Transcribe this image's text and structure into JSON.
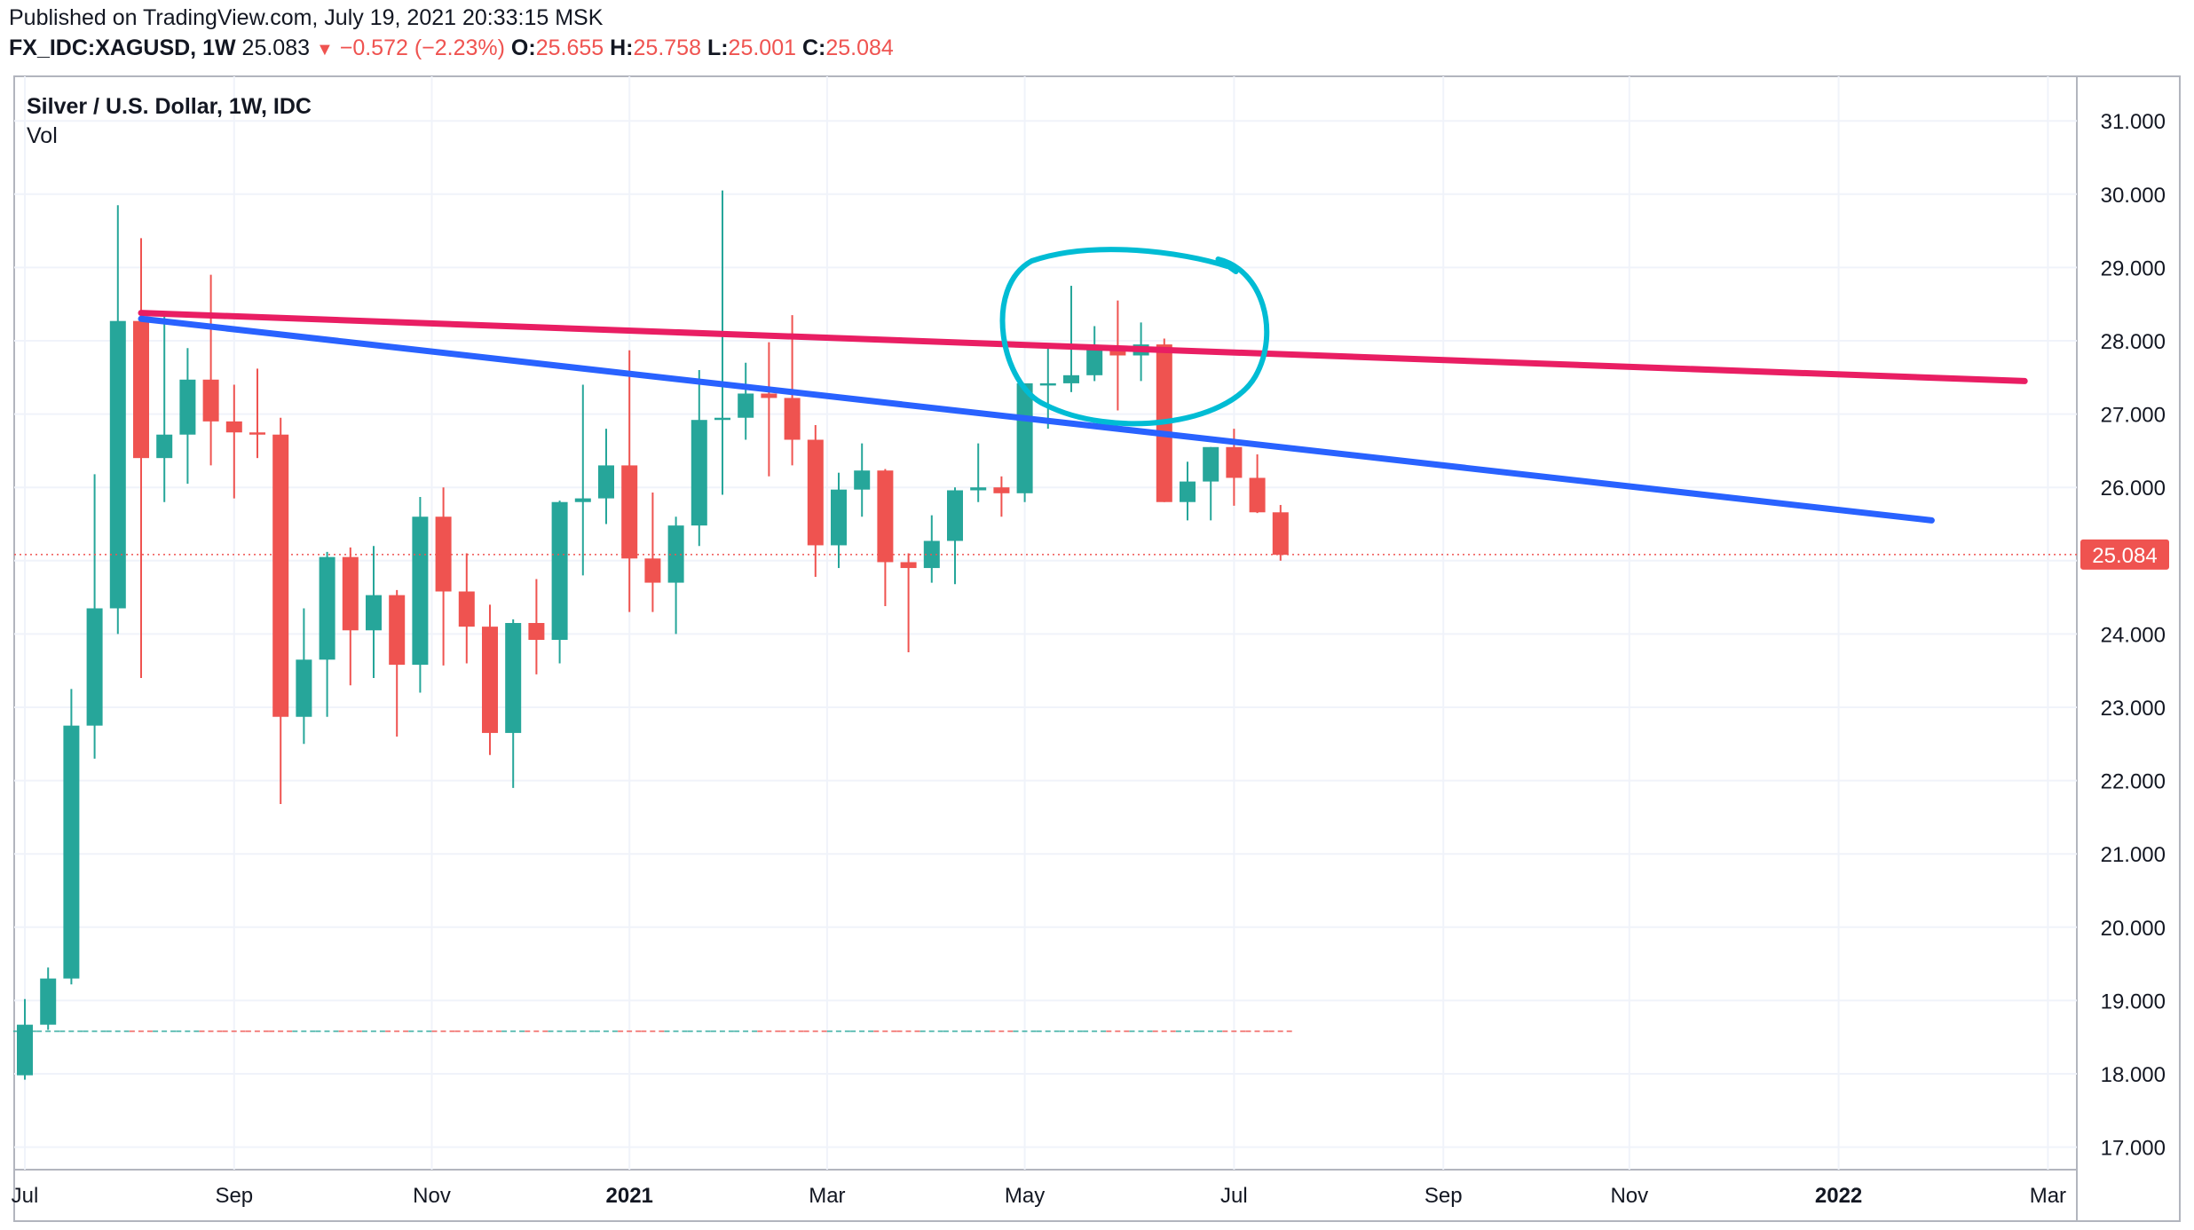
{
  "header": {
    "published": "Published on TradingView.com, July 19, 2021 20:33:15 MSK",
    "symbol": "FX_IDC:XAGUSD, 1W",
    "last": "25.083",
    "change": "−0.572 (−2.23%)",
    "o_label": "O:",
    "o_value": "25.655",
    "h_label": "H:",
    "h_value": "25.758",
    "l_label": "L:",
    "l_value": "25.001",
    "c_label": "C:",
    "c_value": "25.084"
  },
  "legend": {
    "title": "Silver / U.S. Dollar, 1W, IDC",
    "vol": "Vol"
  },
  "colors": {
    "up": "#26a69a",
    "down": "#ef5350",
    "resistance_line": "#e91e63",
    "trend_line": "#2962ff",
    "circle": "#00bcd4",
    "grid": "#f0f3fa",
    "axis_text": "#131722",
    "price_label_bg": "#ef5350"
  },
  "chart_data": {
    "type": "candlestick",
    "title": "Silver / U.S. Dollar, 1W, IDC",
    "ylim": [
      16.7,
      31.6
    ],
    "y_ticks": [
      "17.000",
      "18.000",
      "19.000",
      "20.000",
      "21.000",
      "22.000",
      "23.000",
      "24.000",
      "25.000",
      "26.000",
      "27.000",
      "28.000",
      "29.000",
      "30.000",
      "31.000"
    ],
    "x_ticks": [
      {
        "label": "Jul",
        "bold": false,
        "i": 0
      },
      {
        "label": "Sep",
        "bold": false,
        "i": 9
      },
      {
        "label": "Nov",
        "bold": false,
        "i": 17.5
      },
      {
        "label": "2021",
        "bold": true,
        "i": 26
      },
      {
        "label": "Mar",
        "bold": false,
        "i": 34.5
      },
      {
        "label": "May",
        "bold": false,
        "i": 43
      },
      {
        "label": "Jul",
        "bold": false,
        "i": 52
      },
      {
        "label": "Sep",
        "bold": false,
        "i": 61
      },
      {
        "label": "Nov",
        "bold": false,
        "i": 69
      },
      {
        "label": "2022",
        "bold": true,
        "i": 78
      },
      {
        "label": "Mar",
        "bold": false,
        "i": 87
      }
    ],
    "candles": [
      {
        "o": 17.98,
        "h": 19.02,
        "l": 17.92,
        "c": 18.67
      },
      {
        "o": 18.67,
        "h": 19.45,
        "l": 18.6,
        "c": 19.3
      },
      {
        "o": 19.3,
        "h": 23.25,
        "l": 19.22,
        "c": 22.75
      },
      {
        "o": 22.75,
        "h": 26.18,
        "l": 22.3,
        "c": 24.35
      },
      {
        "o": 24.35,
        "h": 29.85,
        "l": 24.0,
        "c": 28.27
      },
      {
        "o": 28.27,
        "h": 29.4,
        "l": 23.4,
        "c": 26.4
      },
      {
        "o": 26.4,
        "h": 28.4,
        "l": 25.8,
        "c": 26.72
      },
      {
        "o": 26.72,
        "h": 27.9,
        "l": 26.05,
        "c": 27.47
      },
      {
        "o": 27.47,
        "h": 28.9,
        "l": 26.3,
        "c": 26.9
      },
      {
        "o": 26.9,
        "h": 27.4,
        "l": 25.85,
        "c": 26.75
      },
      {
        "o": 26.75,
        "h": 27.62,
        "l": 26.4,
        "c": 26.72
      },
      {
        "o": 26.72,
        "h": 26.95,
        "l": 21.68,
        "c": 22.87
      },
      {
        "o": 22.87,
        "h": 24.35,
        "l": 22.5,
        "c": 23.65
      },
      {
        "o": 23.65,
        "h": 25.12,
        "l": 22.87,
        "c": 25.05
      },
      {
        "o": 25.05,
        "h": 25.18,
        "l": 23.3,
        "c": 24.05
      },
      {
        "o": 24.05,
        "h": 25.2,
        "l": 23.4,
        "c": 24.53
      },
      {
        "o": 24.53,
        "h": 24.6,
        "l": 22.6,
        "c": 23.58
      },
      {
        "o": 23.58,
        "h": 25.87,
        "l": 23.2,
        "c": 25.6
      },
      {
        "o": 25.6,
        "h": 26.0,
        "l": 23.57,
        "c": 24.58
      },
      {
        "o": 24.58,
        "h": 25.1,
        "l": 23.6,
        "c": 24.1
      },
      {
        "o": 24.1,
        "h": 24.4,
        "l": 22.35,
        "c": 22.65
      },
      {
        "o": 22.65,
        "h": 24.2,
        "l": 21.9,
        "c": 24.15
      },
      {
        "o": 24.15,
        "h": 24.75,
        "l": 23.45,
        "c": 23.92
      },
      {
        "o": 23.92,
        "h": 25.82,
        "l": 23.6,
        "c": 25.8
      },
      {
        "o": 25.8,
        "h": 27.4,
        "l": 24.8,
        "c": 25.85
      },
      {
        "o": 25.85,
        "h": 26.8,
        "l": 25.5,
        "c": 26.3
      },
      {
        "o": 26.3,
        "h": 27.87,
        "l": 24.3,
        "c": 25.03
      },
      {
        "o": 25.03,
        "h": 25.93,
        "l": 24.3,
        "c": 24.7
      },
      {
        "o": 24.7,
        "h": 25.6,
        "l": 24.0,
        "c": 25.48
      },
      {
        "o": 25.48,
        "h": 27.6,
        "l": 25.2,
        "c": 26.92
      },
      {
        "o": 26.92,
        "h": 30.05,
        "l": 25.9,
        "c": 26.95
      },
      {
        "o": 26.95,
        "h": 27.7,
        "l": 26.65,
        "c": 27.28
      },
      {
        "o": 27.28,
        "h": 27.98,
        "l": 26.15,
        "c": 27.22
      },
      {
        "o": 27.22,
        "h": 28.35,
        "l": 26.3,
        "c": 26.65
      },
      {
        "o": 26.65,
        "h": 26.85,
        "l": 24.78,
        "c": 25.21
      },
      {
        "o": 25.21,
        "h": 26.2,
        "l": 24.9,
        "c": 25.97
      },
      {
        "o": 25.97,
        "h": 26.6,
        "l": 25.6,
        "c": 26.23
      },
      {
        "o": 26.23,
        "h": 26.25,
        "l": 24.38,
        "c": 24.98
      },
      {
        "o": 24.98,
        "h": 25.1,
        "l": 23.75,
        "c": 24.9
      },
      {
        "o": 24.9,
        "h": 25.62,
        "l": 24.7,
        "c": 25.27
      },
      {
        "o": 25.27,
        "h": 26.0,
        "l": 24.68,
        "c": 25.96
      },
      {
        "o": 25.96,
        "h": 26.6,
        "l": 25.8,
        "c": 26.0
      },
      {
        "o": 26.0,
        "h": 26.15,
        "l": 25.6,
        "c": 25.92
      },
      {
        "o": 25.92,
        "h": 27.4,
        "l": 25.8,
        "c": 27.42
      },
      {
        "o": 27.42,
        "h": 27.9,
        "l": 26.8,
        "c": 27.42
      },
      {
        "o": 27.42,
        "h": 28.75,
        "l": 27.3,
        "c": 27.53
      },
      {
        "o": 27.53,
        "h": 28.2,
        "l": 27.45,
        "c": 27.92
      },
      {
        "o": 27.92,
        "h": 28.55,
        "l": 27.05,
        "c": 27.8
      },
      {
        "o": 27.8,
        "h": 28.25,
        "l": 27.45,
        "c": 27.95
      },
      {
        "o": 27.95,
        "h": 28.03,
        "l": 25.8,
        "c": 25.8
      },
      {
        "o": 25.8,
        "h": 26.35,
        "l": 25.55,
        "c": 26.08
      },
      {
        "o": 26.08,
        "h": 26.55,
        "l": 25.55,
        "c": 26.55
      },
      {
        "o": 26.55,
        "h": 26.8,
        "l": 25.75,
        "c": 26.13
      },
      {
        "o": 26.13,
        "h": 26.45,
        "l": 25.65,
        "c": 25.66
      },
      {
        "o": 25.66,
        "h": 25.76,
        "l": 25.0,
        "c": 25.08
      }
    ],
    "volume_baseline": 18.58,
    "last_price": 25.084,
    "last_price_label": "25.084",
    "lines": [
      {
        "name": "resistance-line",
        "from": [
          5,
          28.38
        ],
        "to": [
          86,
          27.45
        ]
      },
      {
        "name": "trend-line",
        "from": [
          5,
          28.3
        ],
        "to": [
          82,
          25.55
        ]
      }
    ],
    "circle_annotation": {
      "center_i": 47.5,
      "center_y": 28.0
    }
  }
}
